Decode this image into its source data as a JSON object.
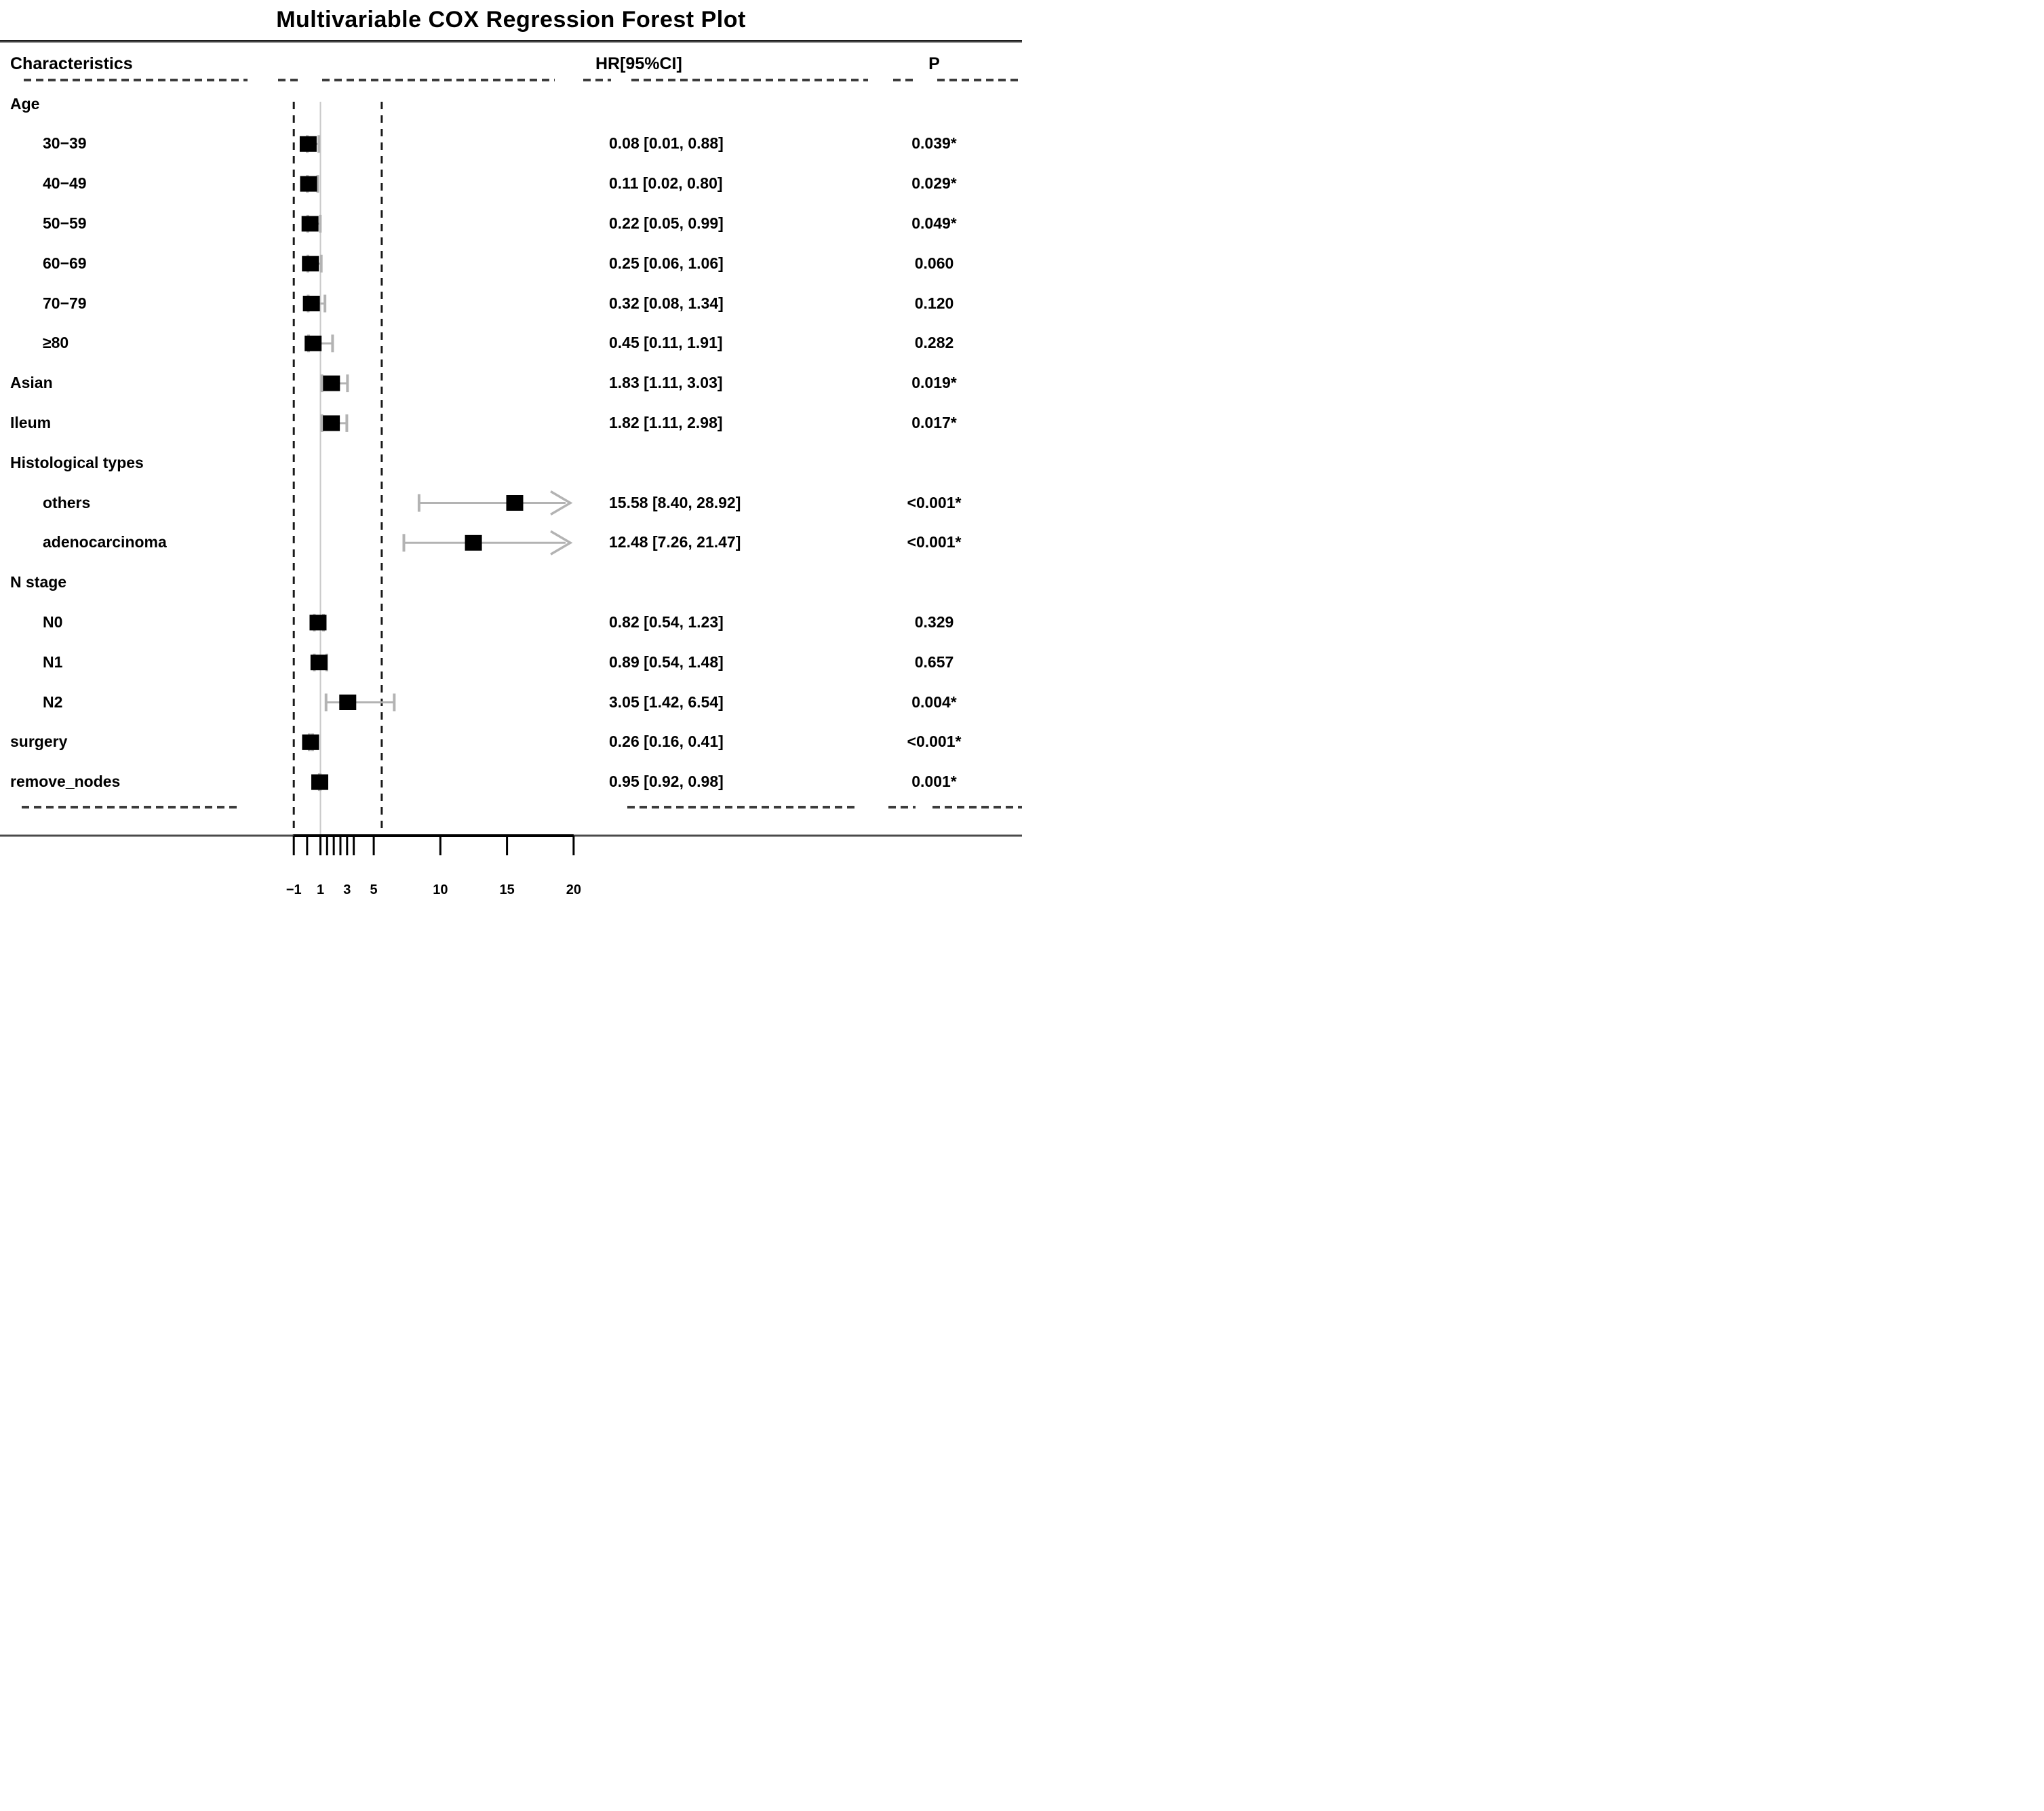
{
  "title": "Multivariable COX Regression Forest Plot",
  "header": {
    "characteristics": "Characteristics",
    "hr": "HR[95%CI]",
    "p": "P"
  },
  "colors": {
    "marker": "#000000",
    "whisker": "#b3b3b3",
    "reference_line": "#c9c9c9",
    "guide_dash": "#1a1a1a",
    "axis_line": "#000000",
    "table_line": "#4a4a4a",
    "text": "#000000",
    "background": "#ffffff"
  },
  "chart_data": {
    "type": "scatter",
    "variant": "forest-plot",
    "title": "Multivariable COX Regression Forest Plot",
    "columns": [
      "Characteristics",
      "HR[95%CI]",
      "P"
    ],
    "xlim": [
      -1,
      20
    ],
    "axis_major_ticks": [
      -1,
      1,
      3,
      5,
      10,
      15,
      20
    ],
    "axis_major_tick_labels": [
      "−1",
      "1",
      "3",
      "5",
      "10",
      "15",
      "20"
    ],
    "axis_minor_ticks": [
      0,
      1.5,
      2,
      2.5,
      3.5
    ],
    "reference_line_x": 1,
    "dashed_guides_x": [
      -1,
      5.6
    ],
    "grid": false,
    "legend": "none",
    "rows": [
      {
        "label": "Age",
        "indent": 0,
        "group": true
      },
      {
        "label": "30−39",
        "indent": 1,
        "hr": 0.08,
        "lo": 0.01,
        "hi": 0.88,
        "hr_text": "0.08 [0.01, 0.88]",
        "p_text": "0.039*",
        "arrow": false
      },
      {
        "label": "40−49",
        "indent": 1,
        "hr": 0.11,
        "lo": 0.02,
        "hi": 0.8,
        "hr_text": "0.11 [0.02, 0.80]",
        "p_text": "0.029*",
        "arrow": false
      },
      {
        "label": "50−59",
        "indent": 1,
        "hr": 0.22,
        "lo": 0.05,
        "hi": 0.99,
        "hr_text": "0.22 [0.05, 0.99]",
        "p_text": "0.049*",
        "arrow": false
      },
      {
        "label": "60−69",
        "indent": 1,
        "hr": 0.25,
        "lo": 0.06,
        "hi": 1.06,
        "hr_text": "0.25 [0.06, 1.06]",
        "p_text": "0.060",
        "arrow": false
      },
      {
        "label": "70−79",
        "indent": 1,
        "hr": 0.32,
        "lo": 0.08,
        "hi": 1.34,
        "hr_text": "0.32 [0.08, 1.34]",
        "p_text": "0.120",
        "arrow": false
      },
      {
        "label": "≥80",
        "indent": 1,
        "hr": 0.45,
        "lo": 0.11,
        "hi": 1.91,
        "hr_text": "0.45 [0.11, 1.91]",
        "p_text": "0.282",
        "arrow": false
      },
      {
        "label": "Asian",
        "indent": 0,
        "hr": 1.83,
        "lo": 1.11,
        "hi": 3.03,
        "hr_text": "1.83 [1.11, 3.03]",
        "p_text": "0.019*",
        "arrow": false
      },
      {
        "label": "Ileum",
        "indent": 0,
        "hr": 1.82,
        "lo": 1.11,
        "hi": 2.98,
        "hr_text": "1.82 [1.11, 2.98]",
        "p_text": "0.017*",
        "arrow": false
      },
      {
        "label": "Histological types",
        "indent": 0,
        "group": true
      },
      {
        "label": "others",
        "indent": 1,
        "hr": 15.58,
        "lo": 8.4,
        "hi": 28.92,
        "hr_text": "15.58 [8.40, 28.92]",
        "p_text": "<0.001*",
        "arrow": true
      },
      {
        "label": "adenocarcinoma",
        "indent": 1,
        "hr": 12.48,
        "lo": 7.26,
        "hi": 21.47,
        "hr_text": "12.48 [7.26, 21.47]",
        "p_text": "<0.001*",
        "arrow": true
      },
      {
        "label": "N stage",
        "indent": 0,
        "group": true
      },
      {
        "label": "N0",
        "indent": 1,
        "hr": 0.82,
        "lo": 0.54,
        "hi": 1.23,
        "hr_text": "0.82 [0.54, 1.23]",
        "p_text": "0.329",
        "arrow": false
      },
      {
        "label": "N1",
        "indent": 1,
        "hr": 0.89,
        "lo": 0.54,
        "hi": 1.48,
        "hr_text": "0.89 [0.54, 1.48]",
        "p_text": "0.657",
        "arrow": false
      },
      {
        "label": "N2",
        "indent": 1,
        "hr": 3.05,
        "lo": 1.42,
        "hi": 6.54,
        "hr_text": "3.05 [1.42, 6.54]",
        "p_text": "0.004*",
        "arrow": false
      },
      {
        "label": "surgery",
        "indent": 0,
        "hr": 0.26,
        "lo": 0.16,
        "hi": 0.41,
        "hr_text": "0.26 [0.16, 0.41]",
        "p_text": "<0.001*",
        "arrow": false
      },
      {
        "label": "remove_nodes",
        "indent": 0,
        "hr": 0.95,
        "lo": 0.92,
        "hi": 0.98,
        "hr_text": "0.95 [0.92, 0.98]",
        "p_text": "0.001*",
        "arrow": false
      }
    ]
  }
}
